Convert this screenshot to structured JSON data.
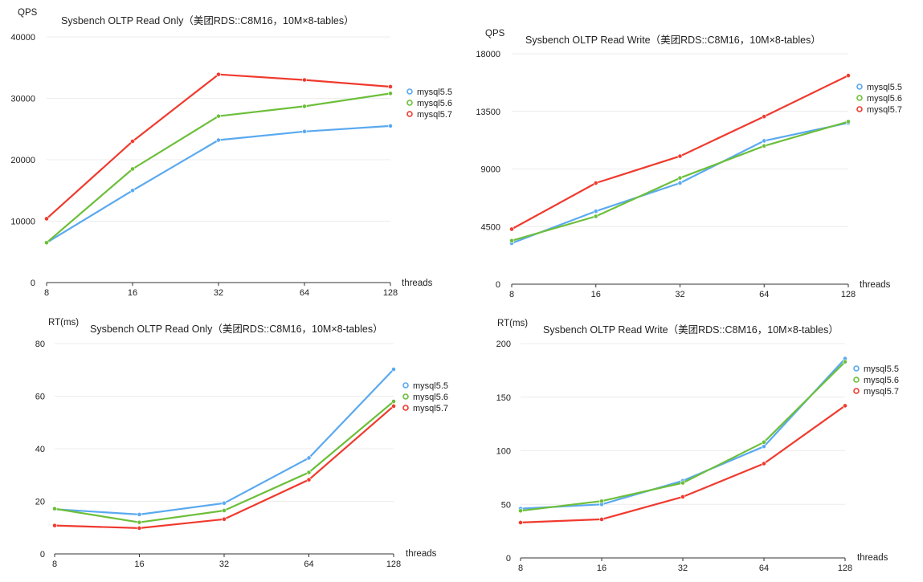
{
  "chart_data": [
    {
      "type": "line",
      "title": "Sysbench OLTP Read Only（美团RDS::C8M16，10M×8-tables）",
      "ylabel": "QPS",
      "xlabel": "threads",
      "categories": [
        "8",
        "16",
        "32",
        "64",
        "128"
      ],
      "ylim": [
        0,
        40000
      ],
      "yticks": [
        "0",
        "10000",
        "20000",
        "30000",
        "40000"
      ],
      "grid": true,
      "legend_position": "right",
      "series": [
        {
          "name": "mysql5.5",
          "color": "#5aa9f0",
          "values": [
            6500,
            15000,
            23200,
            24600,
            25500
          ]
        },
        {
          "name": "mysql5.6",
          "color": "#6cbf3a",
          "values": [
            6500,
            18500,
            27100,
            28700,
            30800
          ]
        },
        {
          "name": "mysql5.7",
          "color": "#f03a2e",
          "values": [
            10400,
            23000,
            33900,
            33000,
            31900
          ]
        }
      ]
    },
    {
      "type": "line",
      "title": "Sysbench OLTP Read Write（美团RDS::C8M16，10M×8-tables）",
      "ylabel": "QPS",
      "xlabel": "threads",
      "categories": [
        "8",
        "16",
        "32",
        "64",
        "128"
      ],
      "ylim": [
        0,
        18000
      ],
      "yticks": [
        "0",
        "4500",
        "9000",
        "13500",
        "18000"
      ],
      "grid": true,
      "legend_position": "right",
      "series": [
        {
          "name": "mysql5.5",
          "color": "#5aa9f0",
          "values": [
            3200,
            5700,
            7900,
            11200,
            12600
          ]
        },
        {
          "name": "mysql5.6",
          "color": "#6cbf3a",
          "values": [
            3400,
            5300,
            8300,
            10800,
            12700
          ]
        },
        {
          "name": "mysql5.7",
          "color": "#f03a2e",
          "values": [
            4300,
            7900,
            10000,
            13100,
            16300
          ]
        }
      ]
    },
    {
      "type": "line",
      "title": "Sysbench OLTP Read Only（美团RDS::C8M16，10M×8-tables）",
      "ylabel": "RT(ms)",
      "xlabel": "threads",
      "categories": [
        "8",
        "16",
        "32",
        "64",
        "128"
      ],
      "ylim": [
        0,
        80
      ],
      "yticks": [
        "0",
        "20",
        "40",
        "60",
        "80"
      ],
      "grid": true,
      "legend_position": "right",
      "series": [
        {
          "name": "mysql5.5",
          "color": "#5aa9f0",
          "values": [
            17.0,
            15.0,
            19.3,
            36.5,
            70.2
          ]
        },
        {
          "name": "mysql5.6",
          "color": "#6cbf3a",
          "values": [
            17.2,
            12.0,
            16.5,
            31.0,
            58.0
          ]
        },
        {
          "name": "mysql5.7",
          "color": "#f03a2e",
          "values": [
            10.8,
            9.8,
            13.2,
            28.2,
            56.2
          ]
        }
      ]
    },
    {
      "type": "line",
      "title": "Sysbench OLTP Read Write（美团RDS::C8M16，10M×8-tables）",
      "ylabel": "RT(ms)",
      "xlabel": "threads",
      "categories": [
        "8",
        "16",
        "32",
        "64",
        "128"
      ],
      "ylim": [
        0,
        200
      ],
      "yticks": [
        "0",
        "50",
        "100",
        "150",
        "200"
      ],
      "grid": true,
      "legend_position": "right",
      "series": [
        {
          "name": "mysql5.5",
          "color": "#5aa9f0",
          "values": [
            46,
            50,
            72,
            104,
            186
          ]
        },
        {
          "name": "mysql5.6",
          "color": "#6cbf3a",
          "values": [
            44,
            53,
            70,
            108,
            183
          ]
        },
        {
          "name": "mysql5.7",
          "color": "#f03a2e",
          "values": [
            33,
            36,
            57,
            88,
            142
          ]
        }
      ]
    }
  ]
}
